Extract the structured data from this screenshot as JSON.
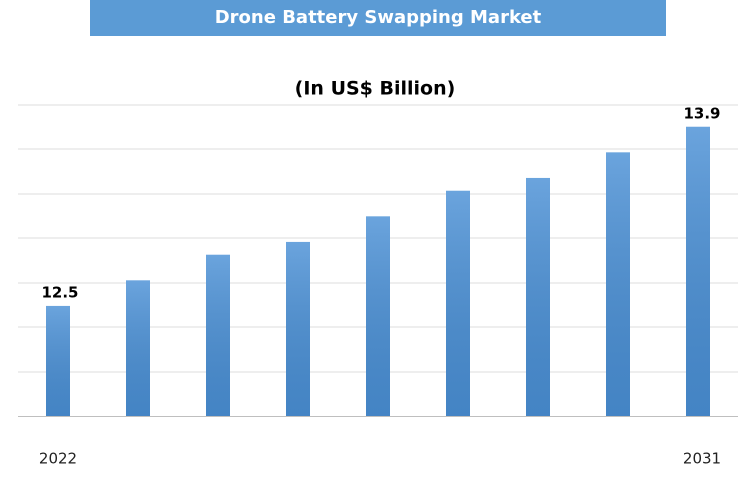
{
  "chart_data": {
    "type": "bar",
    "title": "Drone Battery Swapping Market",
    "subtitle": "(In US$ Billion)",
    "categories": [
      "2022",
      null,
      null,
      null,
      null,
      null,
      null,
      null,
      "2031"
    ],
    "values": [
      12.5,
      12.7,
      12.9,
      13.0,
      13.2,
      13.4,
      13.5,
      13.7,
      13.9
    ],
    "value_labels": [
      "12.5",
      null,
      null,
      null,
      null,
      null,
      null,
      null,
      "13.9"
    ],
    "color": "#4a90d6",
    "ylim": [
      11.64,
      14.07
    ]
  }
}
